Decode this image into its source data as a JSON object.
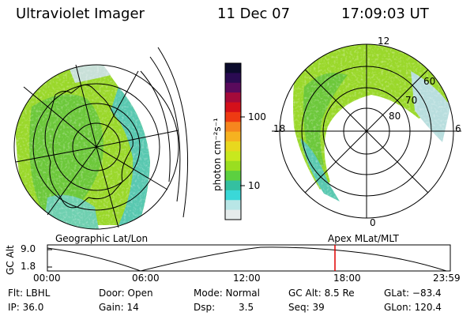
{
  "header": {
    "instrument": "Ultraviolet Imager",
    "date": "11 Dec 07",
    "time": "17:09:03 UT"
  },
  "left_panel": {
    "caption": "Geographic Lat/Lon"
  },
  "right_panel": {
    "caption": "Apex MLat/MLT",
    "mlt_labels": {
      "top": "12",
      "left": "18",
      "right": "6",
      "bottom": "0"
    },
    "lat_labels": [
      "60",
      "70",
      "80"
    ]
  },
  "colorbar": {
    "unit_label": "photon cm⁻²s⁻¹",
    "ticks": [
      "100",
      "10"
    ],
    "colors": [
      "#0b0b2c",
      "#2a0b52",
      "#5a0a5c",
      "#a50a3a",
      "#d4101a",
      "#ee3a12",
      "#f6861e",
      "#f6b220",
      "#e8d81e",
      "#c8e81e",
      "#9ade20",
      "#5cd040",
      "#34c0a0",
      "#3ad8d8",
      "#b8e6e6",
      "#e6ecec"
    ]
  },
  "timeline": {
    "y_label": "GC Alt",
    "y_ticks": [
      "9.0",
      "1.8"
    ],
    "x_ticks": [
      "00:00",
      "06:00",
      "12:00",
      "18:00",
      "23:59"
    ],
    "marker_color": "#e00000"
  },
  "info": {
    "filter": "Flt: LBHL",
    "ip": "IP: 36.0",
    "door": "Door: Open",
    "gain": "Gain: 14",
    "mode": "Mode: Normal",
    "dsp_label": "Dsp:",
    "dsp_value": "3.5",
    "gc_alt": "GC Alt: 8.5 Re",
    "seq": "Seq: 39",
    "glat": "GLat: −83.4",
    "glon": "GLon: 120.4"
  }
}
